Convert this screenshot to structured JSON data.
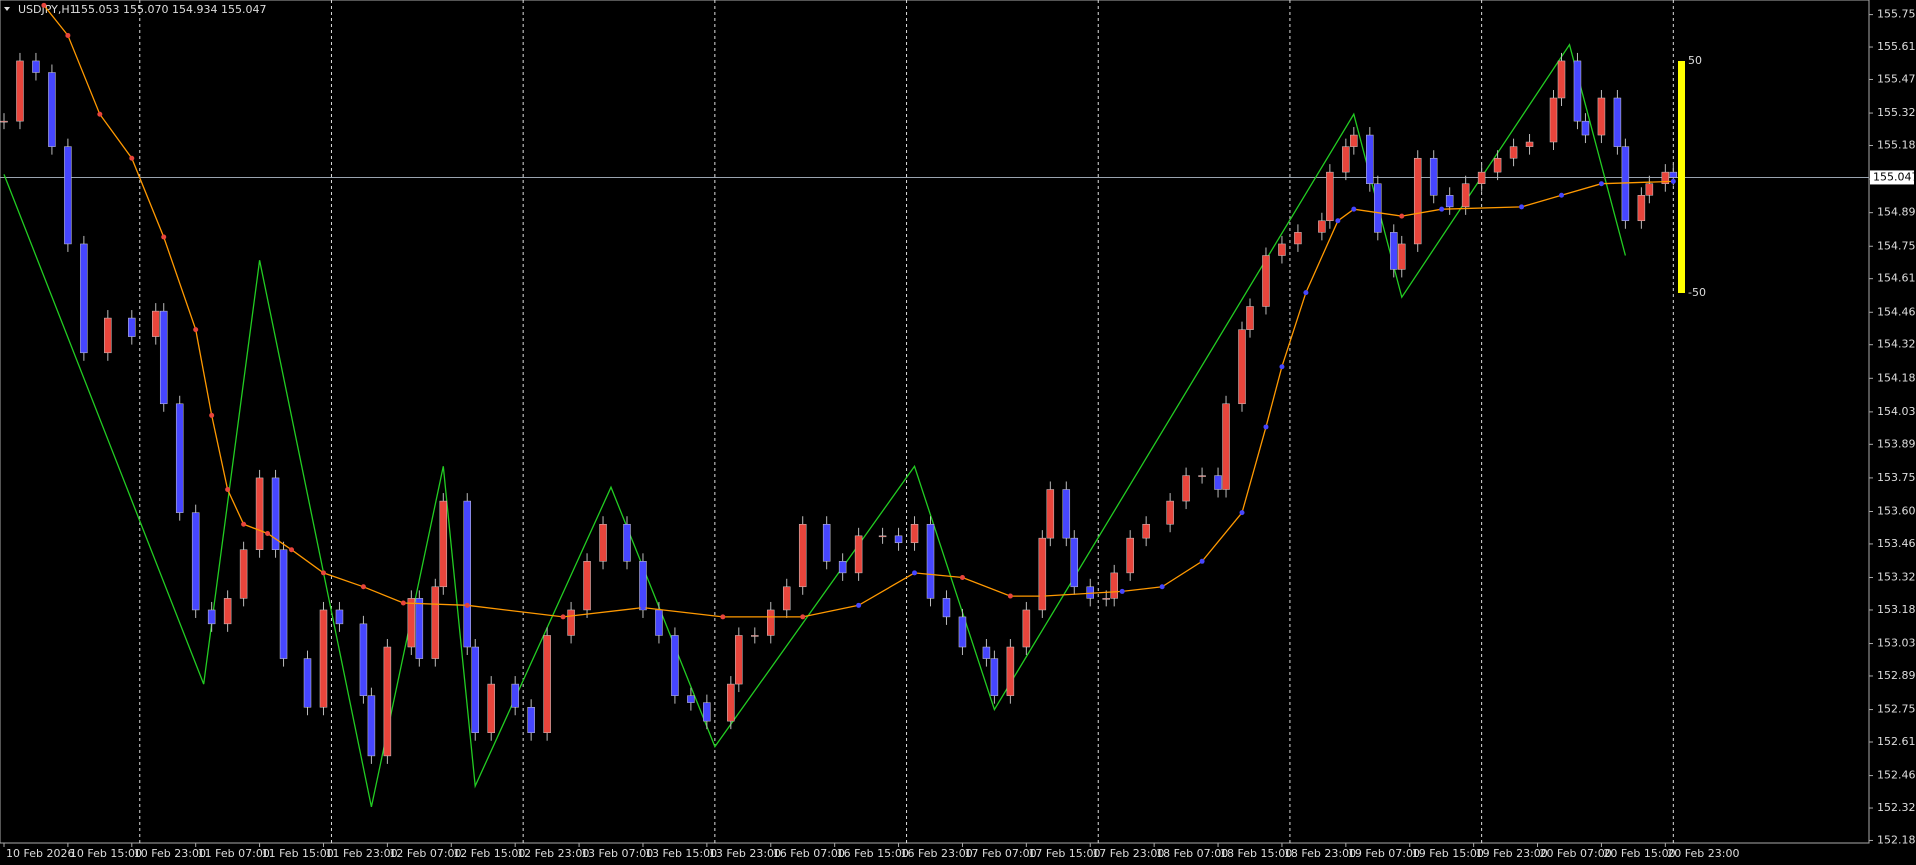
{
  "chart_data": {
    "type": "candlestick",
    "title": "USDJPY,H1",
    "subtitle": "155.053 155.070 154.934 155.047",
    "last_price": 155.047,
    "gauge_levels": [
      50,
      -50
    ],
    "xlim": [
      -0.5,
      233.5
    ],
    "ylim": [
      152.174,
      155.813
    ],
    "yticks": [
      {
        "value": 155.75,
        "label": "155.750"
      },
      {
        "value": 155.61,
        "label": "155.610"
      },
      {
        "value": 155.47,
        "label": "155.470"
      },
      155.325,
      155.185,
      {
        "value": 155.04,
        "label": "155.040"
      },
      154.895,
      {
        "value": 154.75,
        "label": "154.750"
      },
      {
        "value": 154.61,
        "label": "154.610"
      },
      154.465,
      154.325,
      {
        "value": 154.18,
        "label": "154.180"
      },
      154.035,
      153.895,
      {
        "value": 153.75,
        "label": "153.750"
      },
      153.605,
      153.465,
      {
        "value": 153.32,
        "label": "153.320"
      },
      {
        "value": 153.18,
        "label": "153.180"
      },
      153.035,
      152.895,
      {
        "value": 152.75,
        "label": "152.750"
      },
      {
        "value": 152.61,
        "label": "152.610"
      },
      152.465,
      152.325,
      152.185
    ],
    "xticks": [
      {
        "value": 0,
        "label": "10 Feb 2026"
      },
      {
        "value": 8,
        "label": "10 Feb 15:00"
      },
      {
        "value": 16,
        "label": "10 Feb 23:00"
      },
      {
        "value": 24,
        "label": "11 Feb 07:00"
      },
      {
        "value": 32,
        "label": "11 Feb 15:00"
      },
      {
        "value": 40,
        "label": "11 Feb 23:00"
      },
      {
        "value": 48,
        "label": "12 Feb 07:00"
      },
      {
        "value": 56,
        "label": "12 Feb 15:00"
      },
      {
        "value": 64,
        "label": "12 Feb 23:00"
      },
      {
        "value": 72,
        "label": "13 Feb 07:00"
      },
      {
        "value": 80,
        "label": "13 Feb 15:00"
      },
      {
        "value": 88,
        "label": "13 Feb 23:00"
      },
      {
        "value": 96,
        "label": "16 Feb 07:00"
      },
      {
        "value": 104,
        "label": "16 Feb 15:00"
      },
      {
        "value": 112,
        "label": "16 Feb 23:00"
      },
      {
        "value": 120,
        "label": "17 Feb 07:00"
      },
      {
        "value": 128,
        "label": "17 Feb 15:00"
      },
      {
        "value": 136,
        "label": "17 Feb 23:00"
      },
      {
        "value": 144,
        "label": "18 Feb 07:00"
      },
      {
        "value": 152,
        "label": "18 Feb 15:00"
      },
      {
        "value": 160,
        "label": "18 Feb 23:00"
      },
      {
        "value": 168,
        "label": "19 Feb 07:00"
      },
      {
        "value": 176,
        "label": "19 Feb 15:00"
      },
      {
        "value": 184,
        "label": "19 Feb 23:00"
      },
      {
        "value": 192,
        "label": "20 Feb 07:00"
      },
      {
        "value": 200,
        "label": "20 Feb 15:00"
      },
      {
        "value": 208,
        "label": "20 Feb 23:00"
      }
    ],
    "separators": [
      17,
      41,
      65,
      89,
      113,
      137,
      161,
      185,
      209
    ],
    "colors": {
      "up": "#e8453c",
      "down": "#4646ff",
      "ma": "#ff9900",
      "zigzag": "#22cc22",
      "gauge": "#ffff00"
    },
    "candles": {
      "x": [
        0,
        2,
        4,
        6,
        8,
        10,
        13,
        16,
        19,
        20,
        22,
        24,
        26,
        28,
        30,
        32,
        34,
        35,
        38,
        40,
        42,
        45,
        46,
        48,
        51,
        52,
        54,
        55,
        58,
        59,
        61,
        64,
        66,
        68,
        71,
        73,
        75,
        78,
        80,
        82,
        84,
        86,
        88,
        91,
        92,
        94,
        96,
        98,
        100,
        103,
        105,
        107,
        110,
        112,
        114,
        116,
        118,
        120,
        123,
        124,
        126,
        128,
        130,
        131,
        133,
        134,
        136,
        138,
        139,
        141,
        143,
        146,
        148,
        150,
        152,
        153,
        155,
        156,
        158,
        160,
        162,
        165,
        166,
        168,
        169,
        171,
        172,
        174,
        175,
        177,
        179,
        181,
        183,
        185,
        187,
        189,
        191,
        194,
        195,
        197,
        198,
        200,
        202,
        203,
        205,
        206,
        208,
        209
      ],
      "close": [
        155.29,
        155.55,
        155.5,
        155.18,
        154.76,
        154.29,
        154.44,
        154.36,
        154.47,
        154.07,
        153.6,
        153.18,
        153.12,
        153.23,
        153.44,
        153.75,
        153.44,
        152.97,
        152.76,
        153.18,
        153.12,
        152.81,
        152.55,
        153.02,
        153.23,
        152.97,
        153.28,
        153.65,
        153.02,
        152.65,
        152.86,
        152.76,
        152.65,
        153.07,
        153.18,
        153.39,
        153.55,
        153.39,
        153.18,
        153.07,
        152.81,
        152.78,
        152.7,
        152.86,
        153.07,
        153.07,
        153.18,
        153.28,
        153.55,
        153.39,
        153.34,
        153.5,
        153.5,
        153.47,
        153.55,
        153.23,
        153.15,
        153.02,
        152.97,
        152.81,
        153.02,
        153.18,
        153.49,
        153.7,
        153.49,
        153.28,
        153.23,
        153.23,
        153.34,
        153.49,
        153.55,
        153.65,
        153.76,
        153.76,
        153.7,
        154.07,
        154.39,
        154.49,
        154.71,
        154.76,
        154.81,
        154.86,
        155.07,
        155.18,
        155.23,
        155.02,
        154.81,
        154.65,
        154.76,
        155.13,
        154.97,
        154.92,
        155.02,
        155.07,
        155.13,
        155.18,
        155.2,
        155.39,
        155.55,
        155.29,
        155.23,
        155.39,
        155.18,
        154.86,
        154.97,
        155.02,
        155.07,
        155.047
      ]
    },
    "ma": {
      "x": [
        5,
        8,
        12,
        16,
        20,
        24,
        26,
        28,
        30,
        33,
        36,
        40,
        45,
        50,
        58,
        70,
        80,
        90,
        100,
        107,
        114,
        120,
        126,
        130,
        140,
        145,
        150,
        155,
        158,
        160,
        163,
        167,
        169,
        175,
        180,
        190,
        195,
        200,
        209
      ],
      "values": [
        155.79,
        155.66,
        155.32,
        155.13,
        154.79,
        154.39,
        154.02,
        153.7,
        153.55,
        153.51,
        153.44,
        153.34,
        153.28,
        153.21,
        153.2,
        153.15,
        153.19,
        153.15,
        153.15,
        153.2,
        153.34,
        153.32,
        153.24,
        153.24,
        153.26,
        153.28,
        153.39,
        153.6,
        153.97,
        154.23,
        154.55,
        154.86,
        154.91,
        154.88,
        154.91,
        154.92,
        154.97,
        155.02,
        155.03
      ]
    },
    "zigzag": {
      "x": [
        0,
        25,
        32,
        46,
        55,
        59,
        76,
        89,
        114,
        124,
        169,
        175,
        196,
        203
      ],
      "values": [
        155.06,
        152.86,
        154.69,
        152.33,
        153.8,
        152.42,
        153.71,
        152.59,
        153.8,
        152.75,
        155.32,
        154.53,
        155.62,
        154.71
      ]
    }
  }
}
